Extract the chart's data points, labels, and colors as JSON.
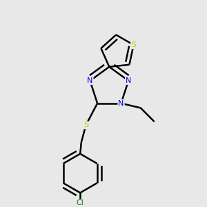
{
  "background_color": "#e8e8e8",
  "bond_color": "#000000",
  "bond_width": 1.8,
  "atom_colors": {
    "N": "#0000ee",
    "S": "#cccc00",
    "Cl": "#008800",
    "C": "#000000"
  },
  "fig_width": 3.0,
  "fig_height": 3.0,
  "dpi": 100
}
